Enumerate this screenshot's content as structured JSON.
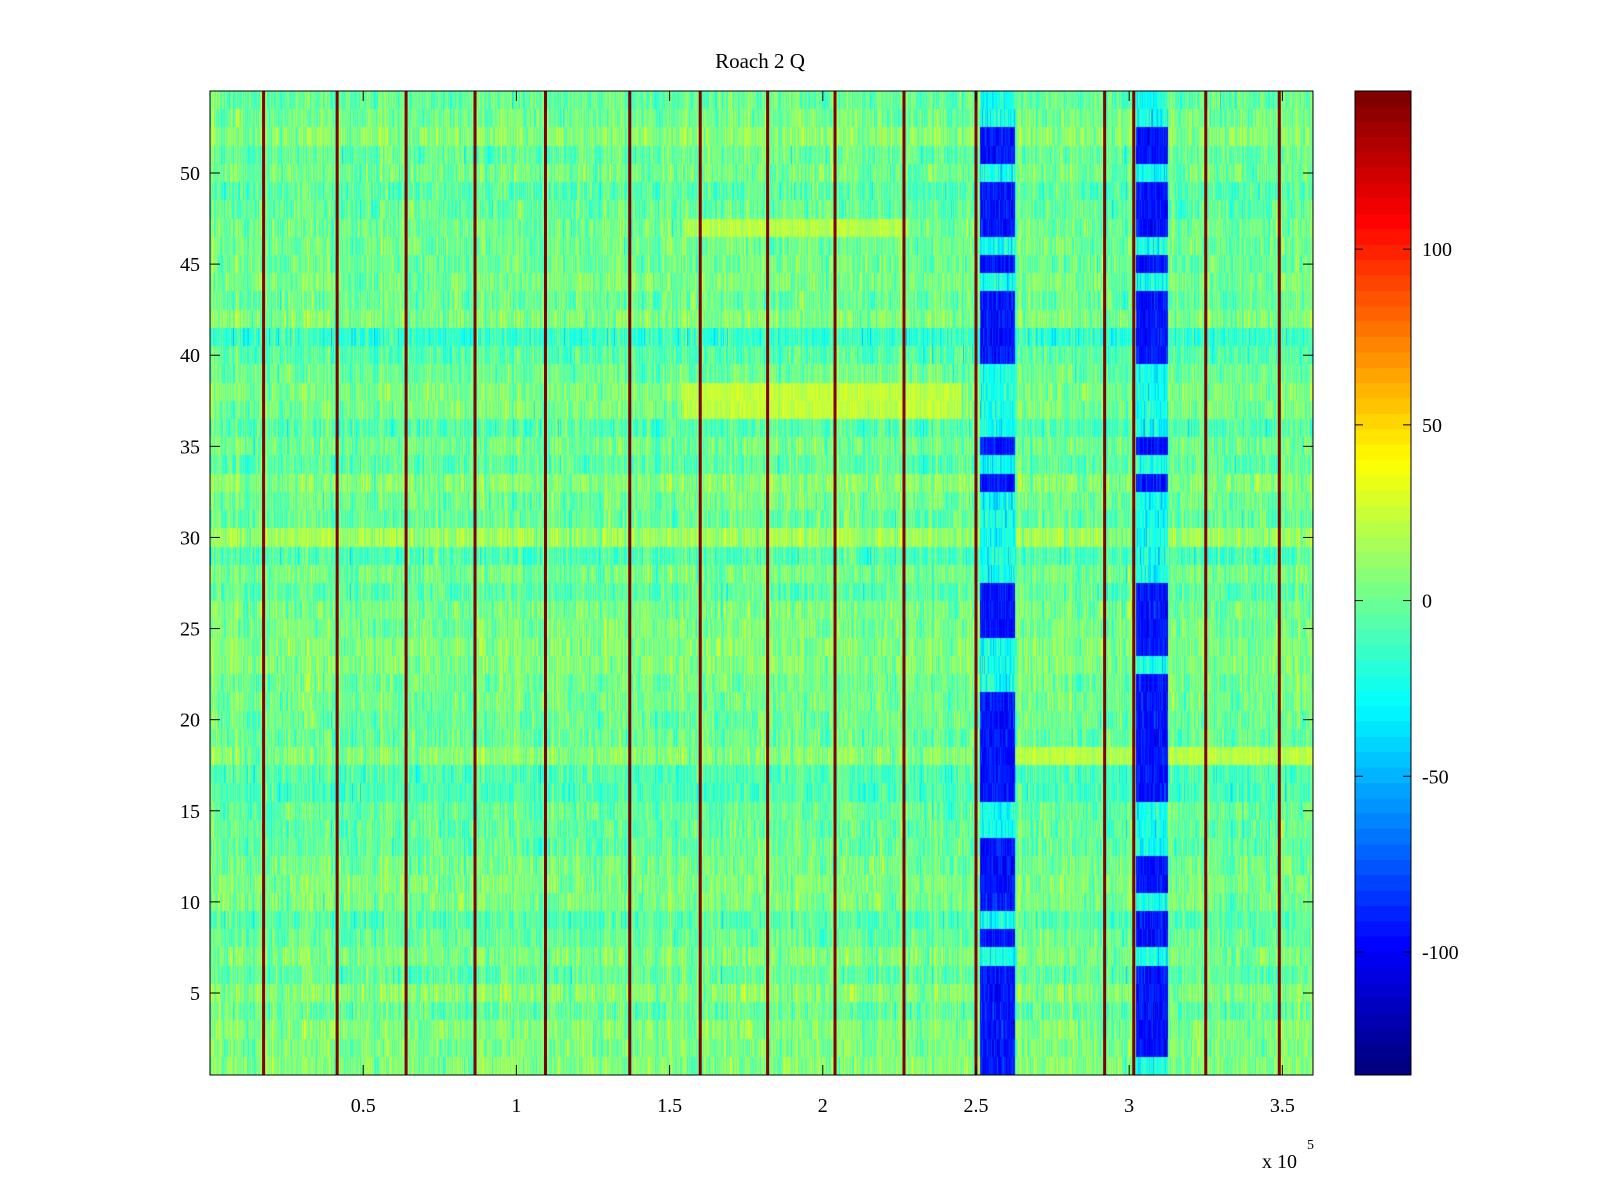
{
  "chart_data": {
    "type": "heatmap",
    "title": "Roach 2 Q",
    "xlabel": "",
    "ylabel": "",
    "x_range": [
      0,
      360000
    ],
    "y_range": [
      0.5,
      54.5
    ],
    "x_ticks": [
      50000,
      100000,
      150000,
      200000,
      250000,
      300000,
      350000
    ],
    "x_tick_labels": [
      "0.5",
      "1",
      "1.5",
      "2",
      "2.5",
      "3",
      "3.5"
    ],
    "x_exponent_label": "x 10",
    "x_exponent_power": "5",
    "y_ticks": [
      5,
      10,
      15,
      20,
      25,
      30,
      35,
      40,
      45,
      50
    ],
    "y_tick_labels": [
      "5",
      "10",
      "15",
      "20",
      "25",
      "30",
      "35",
      "40",
      "45",
      "50"
    ],
    "color_range": [
      -135,
      145
    ],
    "colormap": "jet",
    "colorbar_ticks": [
      -100,
      -50,
      0,
      50,
      100
    ],
    "colorbar_tick_labels": [
      "-100",
      "-50",
      "0",
      "50",
      "100"
    ],
    "background_value": 0,
    "spike_lines_x": [
      17500,
      41500,
      64000,
      86500,
      109500,
      137000,
      160000,
      182000,
      204000,
      226500,
      250000,
      292000,
      301500,
      325000,
      349000
    ],
    "spike_value": 145,
    "low_blocks": [
      {
        "x": [
          251500,
          262500
        ],
        "rows": [
          1,
          2,
          3,
          4,
          5,
          6,
          8,
          10,
          11,
          12,
          13,
          16,
          17,
          18,
          19,
          20,
          21,
          25,
          26,
          27,
          33,
          35,
          40,
          41,
          42,
          43,
          45,
          47,
          48,
          49,
          51,
          52
        ],
        "value": -95
      },
      {
        "x": [
          302500,
          312500
        ],
        "rows": [
          2,
          3,
          4,
          5,
          6,
          8,
          9,
          11,
          12,
          16,
          17,
          18,
          19,
          20,
          21,
          22,
          24,
          25,
          26,
          27,
          33,
          35,
          40,
          41,
          42,
          43,
          45,
          47,
          48,
          49,
          51,
          52
        ],
        "value": -95
      }
    ],
    "high_bands": [
      {
        "y": [
          36.5,
          38.5
        ],
        "x": [
          155000,
          245000
        ],
        "value": 30
      },
      {
        "y": [
          46.5,
          47.5
        ],
        "x": [
          155000,
          228000
        ],
        "value": 28
      },
      {
        "y": [
          17.5,
          18.5
        ],
        "x": [
          262000,
          360000
        ],
        "value": 25
      }
    ]
  }
}
